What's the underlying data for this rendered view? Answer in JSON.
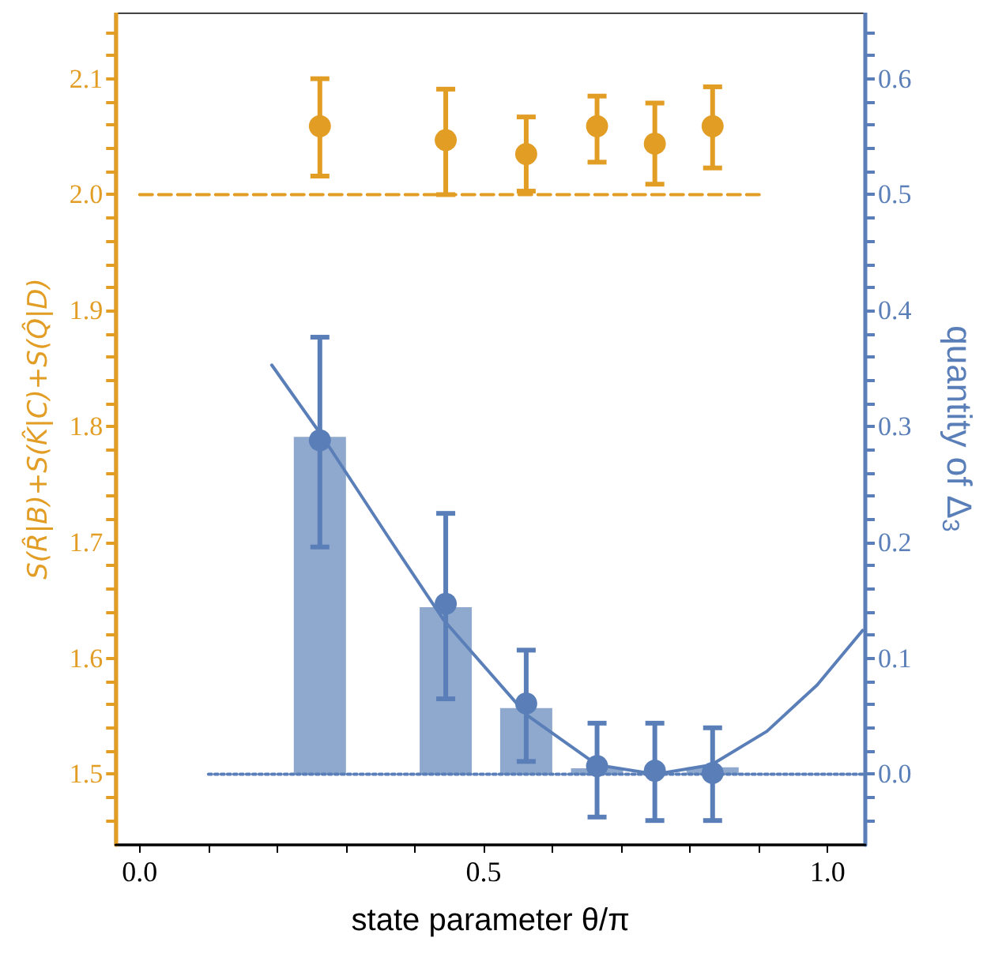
{
  "chart_data": {
    "type": "scatter",
    "xlabel": "state parameter θ/π",
    "ylabel": "S(R̂|B)+S(K̂|C)+S(Q̂|D)",
    "y2label": "quantity of Δ$_{3}$",
    "xlim": [
      -0.035,
      1.055
    ],
    "ylim": [
      1.439,
      2.157
    ],
    "y2lim": [
      -0.061,
      0.657
    ],
    "xticks": [
      {
        "value": 0,
        "label": "0.0"
      },
      {
        "value": 0.1,
        "label": null
      },
      {
        "value": 0.2,
        "label": null
      },
      {
        "value": 0.3,
        "label": null
      },
      {
        "value": 0.4,
        "label": null
      },
      {
        "value": 0.5,
        "label": "0.5"
      },
      {
        "value": 0.6,
        "label": null
      },
      {
        "value": 0.7,
        "label": null
      },
      {
        "value": 0.8,
        "label": null
      },
      {
        "value": 0.9,
        "label": null
      },
      {
        "value": 1,
        "label": "1.0"
      }
    ],
    "yticks": [
      {
        "value": 1.46,
        "label": null
      },
      {
        "value": 1.48,
        "label": null
      },
      {
        "value": 1.5,
        "label": "1.5"
      },
      {
        "value": 1.52,
        "label": null
      },
      {
        "value": 1.54,
        "label": null
      },
      {
        "value": 1.56,
        "label": null
      },
      {
        "value": 1.58,
        "label": null
      },
      {
        "value": 1.6,
        "label": "1.6"
      },
      {
        "value": 1.62,
        "label": null
      },
      {
        "value": 1.64,
        "label": null
      },
      {
        "value": 1.66,
        "label": null
      },
      {
        "value": 1.68,
        "label": null
      },
      {
        "value": 1.7,
        "label": "1.7"
      },
      {
        "value": 1.72,
        "label": null
      },
      {
        "value": 1.74,
        "label": null
      },
      {
        "value": 1.76,
        "label": null
      },
      {
        "value": 1.78,
        "label": null
      },
      {
        "value": 1.8,
        "label": "1.8"
      },
      {
        "value": 1.82,
        "label": null
      },
      {
        "value": 1.84,
        "label": null
      },
      {
        "value": 1.86,
        "label": null
      },
      {
        "value": 1.88,
        "label": null
      },
      {
        "value": 1.9,
        "label": "1.9"
      },
      {
        "value": 1.92,
        "label": null
      },
      {
        "value": 1.94,
        "label": null
      },
      {
        "value": 1.96,
        "label": null
      },
      {
        "value": 1.98,
        "label": null
      },
      {
        "value": 2,
        "label": "2.0"
      },
      {
        "value": 2.02,
        "label": null
      },
      {
        "value": 2.04,
        "label": null
      },
      {
        "value": 2.06,
        "label": null
      },
      {
        "value": 2.08,
        "label": null
      },
      {
        "value": 2.1,
        "label": "2.1"
      },
      {
        "value": 2.12,
        "label": null
      },
      {
        "value": 2.14,
        "label": null
      }
    ],
    "y2ticks": [
      {
        "value": -0.04,
        "label": null
      },
      {
        "value": -0.02,
        "label": null
      },
      {
        "value": 0,
        "label": "0.0"
      },
      {
        "value": 0.02,
        "label": null
      },
      {
        "value": 0.04,
        "label": null
      },
      {
        "value": 0.06,
        "label": null
      },
      {
        "value": 0.08,
        "label": null
      },
      {
        "value": 0.1,
        "label": "0.1"
      },
      {
        "value": 0.12,
        "label": null
      },
      {
        "value": 0.14,
        "label": null
      },
      {
        "value": 0.16,
        "label": null
      },
      {
        "value": 0.18,
        "label": null
      },
      {
        "value": 0.2,
        "label": "0.2"
      },
      {
        "value": 0.22,
        "label": null
      },
      {
        "value": 0.24,
        "label": null
      },
      {
        "value": 0.26,
        "label": null
      },
      {
        "value": 0.28,
        "label": null
      },
      {
        "value": 0.3,
        "label": "0.3"
      },
      {
        "value": 0.32,
        "label": null
      },
      {
        "value": 0.34,
        "label": null
      },
      {
        "value": 0.36,
        "label": null
      },
      {
        "value": 0.38,
        "label": null
      },
      {
        "value": 0.4,
        "label": "0.4"
      },
      {
        "value": 0.42,
        "label": null
      },
      {
        "value": 0.44,
        "label": null
      },
      {
        "value": 0.46,
        "label": null
      },
      {
        "value": 0.48,
        "label": null
      },
      {
        "value": 0.5,
        "label": "0.5"
      },
      {
        "value": 0.52,
        "label": null
      },
      {
        "value": 0.54,
        "label": null
      },
      {
        "value": 0.56,
        "label": null
      },
      {
        "value": 0.58,
        "label": null
      },
      {
        "value": 0.6,
        "label": "0.6"
      },
      {
        "value": 0.62,
        "label": null
      },
      {
        "value": 0.64,
        "label": null
      }
    ],
    "grid": false,
    "series": [
      {
        "type": "bar",
        "axis": "y2",
        "color": "#8fa8cd",
        "x": [
          0.262,
          0.445,
          0.562,
          0.665,
          0.749,
          0.833
        ],
        "values": [
          0.291,
          0.144,
          0.057,
          0.005,
          0,
          0.006
        ]
      },
      {
        "type": "line",
        "axis": "y2",
        "color": "#5a7fb8",
        "marker": "none",
        "line_style": "solid",
        "x": [
          0.192,
          0.266,
          0.361,
          0.442,
          0.563,
          0.665,
          0.75,
          0.831,
          0.912,
          0.985,
          1.051
        ],
        "values": [
          0.353,
          0.291,
          0.205,
          0.133,
          0.051,
          0.008,
          0,
          0.008,
          0.037,
          0.077,
          0.124
        ]
      },
      {
        "type": "line",
        "axis": "y",
        "color": "#e29d25",
        "marker": "none",
        "line_style": "dashed",
        "x": [
          0,
          0.905
        ],
        "values": [
          2,
          2
        ]
      },
      {
        "type": "line",
        "axis": "y2",
        "color": "#5a7fb8",
        "marker": "none",
        "line_style": "dotted",
        "x": [
          0.1,
          1.055
        ],
        "values": [
          0,
          0
        ]
      },
      {
        "axis": "y",
        "color": "#e29d25",
        "marker": "circle",
        "x": [
          0.262,
          0.445,
          0.562,
          0.665,
          0.749,
          0.833
        ],
        "values": [
          2.059,
          2.047,
          2.035,
          2.059,
          2.044,
          2.059
        ],
        "errors": [
          [
            2.016,
            2.1
          ],
          [
            2.0,
            2.091
          ],
          [
            2.003,
            2.067
          ],
          [
            2.028,
            2.085
          ],
          [
            2.009,
            2.079
          ],
          [
            2.023,
            2.093
          ]
        ]
      },
      {
        "axis": "y2",
        "color": "#5a7fb8",
        "marker": "circle",
        "x": [
          0.262,
          0.445,
          0.562,
          0.665,
          0.749,
          0.833
        ],
        "values": [
          0.288,
          0.147,
          0.061,
          0.007,
          0.003,
          0.001
        ],
        "errors": [
          [
            0.196,
            0.377
          ],
          [
            0.065,
            0.225
          ],
          [
            0.011,
            0.107
          ],
          [
            -0.037,
            0.044
          ],
          [
            -0.04,
            0.044
          ],
          [
            -0.04,
            0.04
          ]
        ]
      }
    ]
  }
}
